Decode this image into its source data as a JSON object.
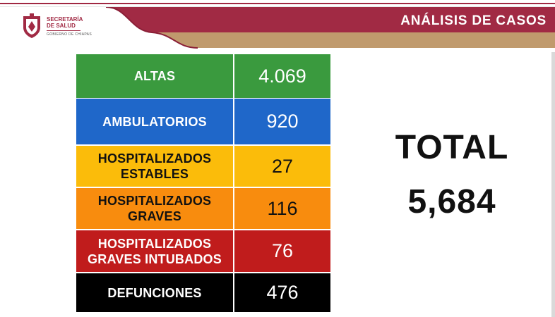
{
  "header": {
    "title": "ANÁLISIS DE CASOS",
    "logo": {
      "line1": "SECRETARÍA",
      "line2": "DE SALUD",
      "line3": "GOBIERNO DE CHIAPAS"
    }
  },
  "rows": [
    {
      "label": "ALTAS",
      "value": "4.069",
      "bg": "#3a9a3e",
      "label_color": "#ffffff",
      "value_color": "#ffffff"
    },
    {
      "label": "AMBULATORIOS",
      "value": "920",
      "bg": "#1f67c9",
      "label_color": "#ffffff",
      "value_color": "#ffffff"
    },
    {
      "label": "HOSPITALIZADOS\nESTABLES",
      "value": "27",
      "bg": "#fbbc0a",
      "label_color": "#111111",
      "value_color": "#111111"
    },
    {
      "label": "HOSPITALIZADOS\nGRAVES",
      "value": "116",
      "bg": "#f88c0e",
      "label_color": "#111111",
      "value_color": "#111111"
    },
    {
      "label": "HOSPITALIZADOS\nGRAVES INTUBADOS",
      "value": "76",
      "bg": "#c01c1c",
      "label_color": "#ffffff",
      "value_color": "#ffffff"
    },
    {
      "label": "DEFUNCIONES",
      "value": "476",
      "bg": "#000000",
      "label_color": "#ffffff",
      "value_color": "#ffffff"
    }
  ],
  "summary": {
    "label": "TOTAL",
    "value": "5,684"
  },
  "colors": {
    "header_bar": "#a12a44",
    "header_accent": "#c09a6d"
  }
}
